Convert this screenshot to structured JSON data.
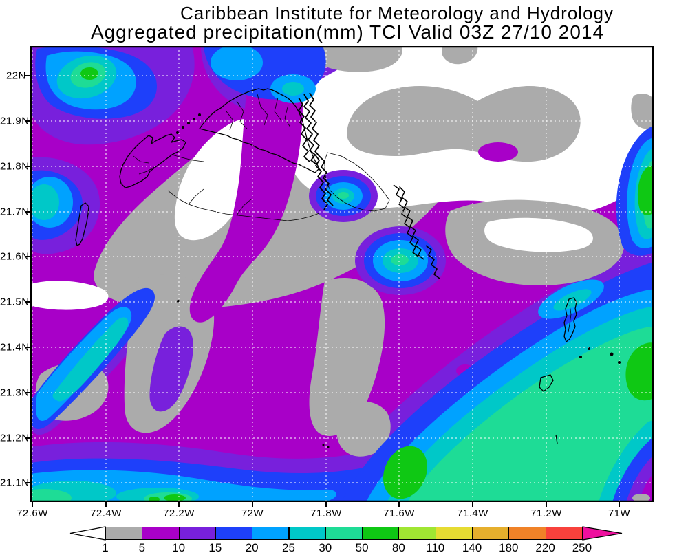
{
  "header": {
    "line1": "Caribbean Institute for Meteorology and Hydrology",
    "line2": "Aggregated precipitation(mm) TCI Valid 03Z 27/10 2014"
  },
  "map": {
    "lat_labels": [
      "22N",
      "21.9N",
      "21.8N",
      "21.7N",
      "21.6N",
      "21.5N",
      "21.4N",
      "21.3N",
      "21.2N",
      "21.1N"
    ],
    "lon_labels": [
      "72.6W",
      "72.4W",
      "72.2W",
      "72W",
      "71.8W",
      "71.6W",
      "71.4W",
      "71.2W",
      "71W"
    ],
    "region": "Turks and Caicos Islands",
    "gridline_color": "#ffffff",
    "coastline_color": "#000000"
  },
  "colorbar": {
    "unit": "mm",
    "labels": [
      "1",
      "5",
      "10",
      "15",
      "20",
      "25",
      "30",
      "50",
      "80",
      "110",
      "140",
      "180",
      "220",
      "250"
    ],
    "colors": [
      "#ababab",
      "#a800c8",
      "#7820dc",
      "#1e40fa",
      "#00a2ff",
      "#00c8c8",
      "#1edc96",
      "#0fc814",
      "#a0e632",
      "#e6dc32",
      "#e6af2d",
      "#f08228",
      "#f8413c"
    ],
    "arrow_left_color": "#ffffff",
    "arrow_right_color": "#ee0f9e"
  }
}
